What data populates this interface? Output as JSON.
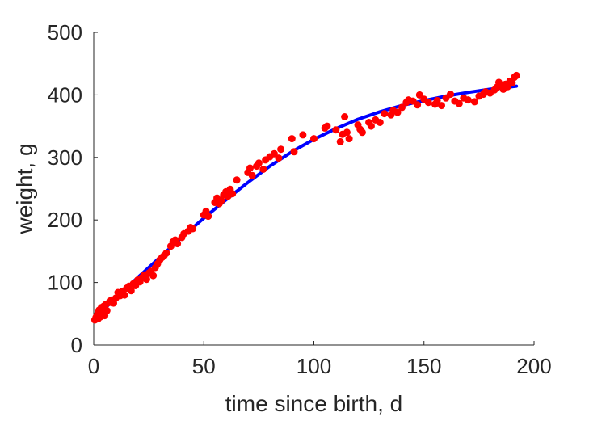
{
  "chart_data": {
    "type": "scatter",
    "xlabel": "time since birth, d",
    "ylabel": "weight, g",
    "xlim": [
      0,
      200
    ],
    "ylim": [
      0,
      500
    ],
    "xticks": [
      "0",
      "50",
      "100",
      "150",
      "200"
    ],
    "yticks": [
      "0",
      "100",
      "200",
      "300",
      "400",
      "500"
    ],
    "grid": false,
    "series": [
      {
        "kind": "points",
        "color": "#ff0000",
        "points": [
          [
            0.5,
            40
          ],
          [
            1,
            44
          ],
          [
            1.5,
            48
          ],
          [
            2,
            52
          ],
          [
            2,
            42
          ],
          [
            2.5,
            56
          ],
          [
            3,
            45
          ],
          [
            3.5,
            60
          ],
          [
            4,
            50
          ],
          [
            4.5,
            62
          ],
          [
            5,
            47
          ],
          [
            5.5,
            65
          ],
          [
            6,
            55
          ],
          [
            7,
            68
          ],
          [
            8,
            72
          ],
          [
            9,
            67
          ],
          [
            10,
            75
          ],
          [
            11,
            84
          ],
          [
            12,
            79
          ],
          [
            13,
            86
          ],
          [
            14,
            80
          ],
          [
            15,
            91
          ],
          [
            16,
            94
          ],
          [
            17,
            87
          ],
          [
            18,
            98
          ],
          [
            19,
            95
          ],
          [
            20,
            104
          ],
          [
            21,
            101
          ],
          [
            22,
            108
          ],
          [
            23,
            112
          ],
          [
            24,
            105
          ],
          [
            25,
            115
          ],
          [
            26,
            118
          ],
          [
            27,
            111
          ],
          [
            28,
            124
          ],
          [
            29,
            130
          ],
          [
            30,
            136
          ],
          [
            31,
            140
          ],
          [
            32,
            143
          ],
          [
            33,
            147
          ],
          [
            35,
            158
          ],
          [
            36,
            165
          ],
          [
            37,
            168
          ],
          [
            38,
            162
          ],
          [
            40,
            172
          ],
          [
            41,
            178
          ],
          [
            43,
            182
          ],
          [
            44,
            188
          ],
          [
            45,
            186
          ],
          [
            50,
            208
          ],
          [
            51,
            214
          ],
          [
            52,
            206
          ],
          [
            55,
            228
          ],
          [
            56,
            235
          ],
          [
            57,
            226
          ],
          [
            58,
            231
          ],
          [
            59,
            240
          ],
          [
            60,
            245
          ],
          [
            61,
            238
          ],
          [
            62,
            249
          ],
          [
            63,
            242
          ],
          [
            65,
            264
          ],
          [
            70,
            276
          ],
          [
            71,
            283
          ],
          [
            72,
            271
          ],
          [
            74,
            286
          ],
          [
            75,
            291
          ],
          [
            77,
            281
          ],
          [
            78,
            296
          ],
          [
            80,
            301
          ],
          [
            82,
            306
          ],
          [
            84,
            299
          ],
          [
            85,
            313
          ],
          [
            90,
            330
          ],
          [
            91,
            309
          ],
          [
            95,
            336
          ],
          [
            100,
            330
          ],
          [
            105,
            347
          ],
          [
            106,
            350
          ],
          [
            110,
            344
          ],
          [
            112,
            325
          ],
          [
            113,
            337
          ],
          [
            114,
            365
          ],
          [
            115,
            340
          ],
          [
            116,
            330
          ],
          [
            120,
            352
          ],
          [
            121,
            345
          ],
          [
            122,
            340
          ],
          [
            125,
            356
          ],
          [
            126,
            350
          ],
          [
            128,
            360
          ],
          [
            130,
            356
          ],
          [
            132,
            370
          ],
          [
            135,
            368
          ],
          [
            136,
            375
          ],
          [
            138,
            372
          ],
          [
            140,
            380
          ],
          [
            142,
            388
          ],
          [
            143,
            392
          ],
          [
            145,
            390
          ],
          [
            147,
            384
          ],
          [
            148,
            400
          ],
          [
            150,
            393
          ],
          [
            152,
            388
          ],
          [
            155,
            385
          ],
          [
            156,
            391
          ],
          [
            158,
            383
          ],
          [
            160,
            395
          ],
          [
            162,
            401
          ],
          [
            164,
            390
          ],
          [
            166,
            386
          ],
          [
            168,
            395
          ],
          [
            170,
            392
          ],
          [
            173,
            389
          ],
          [
            175,
            398
          ],
          [
            177,
            401
          ],
          [
            178,
            405
          ],
          [
            180,
            403
          ],
          [
            182,
            408
          ],
          [
            183,
            412
          ],
          [
            184,
            420
          ],
          [
            185,
            415
          ],
          [
            186,
            409
          ],
          [
            187,
            417
          ],
          [
            188,
            413
          ],
          [
            189,
            422
          ],
          [
            190,
            419
          ],
          [
            191,
            428
          ],
          [
            192,
            431
          ]
        ]
      },
      {
        "kind": "line",
        "color": "#0000ff",
        "points": [
          [
            0,
            42
          ],
          [
            10,
            75
          ],
          [
            20,
            108
          ],
          [
            30,
            140
          ],
          [
            40,
            172
          ],
          [
            50,
            203
          ],
          [
            60,
            232
          ],
          [
            70,
            260
          ],
          [
            80,
            286
          ],
          [
            90,
            309
          ],
          [
            100,
            329
          ],
          [
            110,
            346
          ],
          [
            120,
            361
          ],
          [
            130,
            373
          ],
          [
            140,
            383
          ],
          [
            150,
            391
          ],
          [
            160,
            398
          ],
          [
            170,
            404
          ],
          [
            180,
            409
          ],
          [
            190,
            413
          ],
          [
            192,
            414
          ]
        ]
      }
    ]
  }
}
